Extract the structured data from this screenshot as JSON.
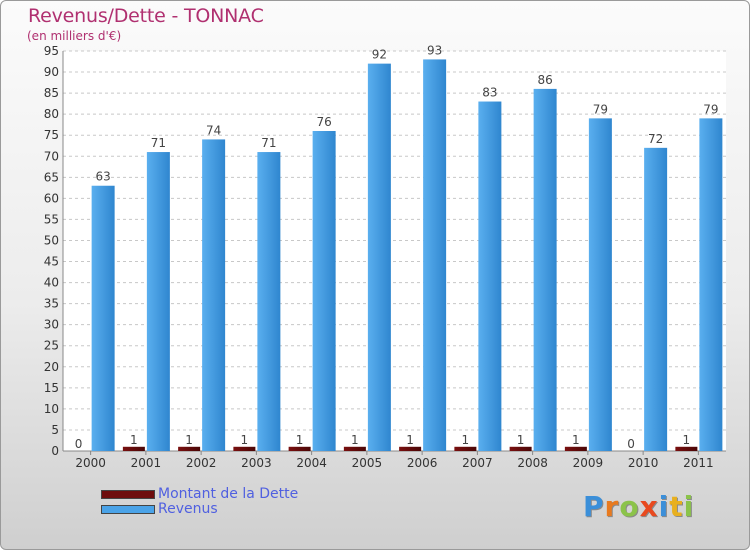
{
  "chart_data": {
    "type": "bar",
    "title": "Revenus/Dette - TONNAC",
    "subtitle": "(en milliers d'€)",
    "categories": [
      "2000",
      "2001",
      "2002",
      "2003",
      "2004",
      "2005",
      "2006",
      "2007",
      "2008",
      "2009",
      "2010",
      "2011"
    ],
    "series": [
      {
        "name": "Montant de la Dette",
        "values": [
          0,
          1,
          1,
          1,
          1,
          1,
          1,
          1,
          1,
          1,
          0,
          1
        ],
        "color": "#6e0d0d"
      },
      {
        "name": "Revenus",
        "values": [
          63,
          71,
          74,
          71,
          76,
          92,
          93,
          83,
          86,
          79,
          72,
          79
        ],
        "color": "#4aa3e8"
      }
    ],
    "ylim": [
      0,
      95
    ],
    "yticks": [
      0,
      5,
      10,
      15,
      20,
      25,
      30,
      35,
      40,
      45,
      50,
      55,
      60,
      65,
      70,
      75,
      80,
      85,
      90,
      95
    ],
    "grid": true,
    "legend_position": "bottom-left"
  },
  "logo": {
    "text": "Proxiti",
    "letters": [
      "P",
      "r",
      "o",
      "x",
      "i",
      "t",
      "i"
    ],
    "colors": [
      "#3b8fd9",
      "#e87a1f",
      "#8bc34a",
      "#e84a1f",
      "#3b8fd9",
      "#e8b01f",
      "#8bc34a"
    ]
  }
}
